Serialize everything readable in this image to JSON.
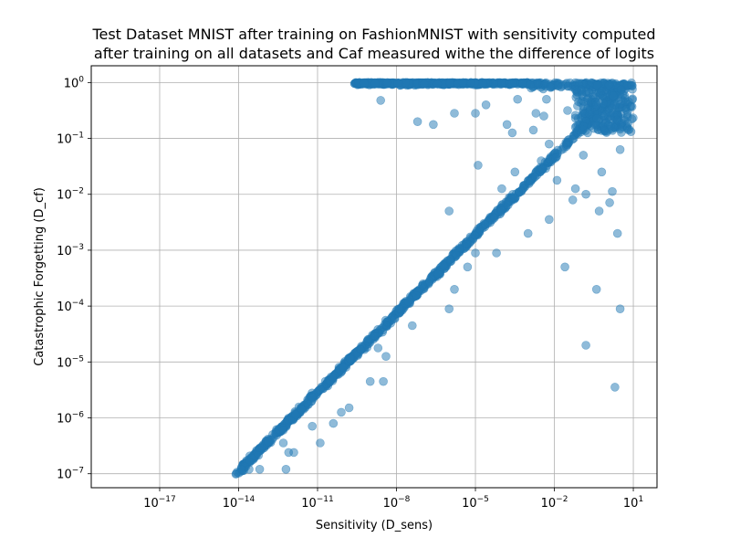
{
  "chart_data": {
    "type": "scatter",
    "title_lines": [
      "Test Dataset MNIST after training on FashionMNIST with sensitivity computed",
      "after training on all datasets and Caf measured withe the difference of logits"
    ],
    "xlabel": "Sensitivity (D_sens)",
    "ylabel": "Catastrophic Forgetting (D_cf)",
    "x_scale": "log",
    "y_scale": "log",
    "xlim_log10": [
      -19.6,
      1.9
    ],
    "ylim_log10": [
      -7.25,
      0.3
    ],
    "x_ticks": [
      {
        "base": "10",
        "exp": "−17",
        "log10": -17
      },
      {
        "base": "10",
        "exp": "−14",
        "log10": -14
      },
      {
        "base": "10",
        "exp": "−11",
        "log10": -11
      },
      {
        "base": "10",
        "exp": "−8",
        "log10": -8
      },
      {
        "base": "10",
        "exp": "−5",
        "log10": -5
      },
      {
        "base": "10",
        "exp": "−2",
        "log10": -2
      },
      {
        "base": "10",
        "exp": "1",
        "log10": 1
      }
    ],
    "y_ticks": [
      {
        "base": "10",
        "exp": "−7",
        "log10": -7
      },
      {
        "base": "10",
        "exp": "−6",
        "log10": -6
      },
      {
        "base": "10",
        "exp": "−5",
        "log10": -5
      },
      {
        "base": "10",
        "exp": "−4",
        "log10": -4
      },
      {
        "base": "10",
        "exp": "−3",
        "log10": -3
      },
      {
        "base": "10",
        "exp": "−2",
        "log10": -2
      },
      {
        "base": "10",
        "exp": "−1",
        "log10": -1
      },
      {
        "base": "10",
        "exp": "0",
        "log10": 0
      }
    ],
    "grid": true,
    "point_color": "#1f77b4",
    "point_alpha": 0.5,
    "main_trend_log10": {
      "x_start": -14,
      "y_start": -7,
      "x_end": 0.8,
      "y_end": 0,
      "slope": 0.47
    },
    "saturated_band_log10": {
      "y": 0,
      "x_start": -9.6,
      "x_end": 1.0
    },
    "outliers_log10": [
      [
        -13.9,
        -6.92
      ],
      [
        -13.6,
        -6.92
      ],
      [
        -13.2,
        -6.92
      ],
      [
        -12.2,
        -6.92
      ],
      [
        -12.3,
        -6.45
      ],
      [
        -12.3,
        -6.22
      ],
      [
        -12.1,
        -6.62
      ],
      [
        -11.9,
        -6.62
      ],
      [
        -11.2,
        -6.15
      ],
      [
        -10.9,
        -6.45
      ],
      [
        -10.4,
        -6.1
      ],
      [
        -10.1,
        -5.9
      ],
      [
        -9.8,
        -5.82
      ],
      [
        -9.0,
        -5.35
      ],
      [
        -8.5,
        -5.35
      ],
      [
        -8.7,
        -4.75
      ],
      [
        -8.4,
        -4.35
      ],
      [
        -8.4,
        -4.9
      ],
      [
        -7.4,
        -4.35
      ],
      [
        -7.9,
        -4.05
      ],
      [
        -6.0,
        -4.05
      ],
      [
        -5.8,
        -3.7
      ],
      [
        -5.3,
        -3.3
      ],
      [
        -5.0,
        -3.05
      ],
      [
        -4.2,
        -3.05
      ],
      [
        -3.0,
        -2.7
      ],
      [
        -2.2,
        -2.45
      ],
      [
        -1.2,
        -1.9
      ],
      [
        -1.9,
        -1.75
      ],
      [
        -0.2,
        -1.6
      ],
      [
        0.4,
        -2.7
      ],
      [
        -0.3,
        -2.3
      ],
      [
        -1.6,
        -3.3
      ],
      [
        -0.4,
        -3.7
      ],
      [
        0.5,
        -4.05
      ],
      [
        -0.8,
        -4.7
      ],
      [
        0.3,
        -5.45
      ],
      [
        -2.5,
        -1.4
      ],
      [
        -2.2,
        -1.1
      ],
      [
        -2.8,
        -0.85
      ],
      [
        -3.6,
        -0.9
      ],
      [
        -3.8,
        -0.75
      ],
      [
        -2.4,
        -0.6
      ],
      [
        -1.2,
        -0.8
      ],
      [
        -5.8,
        -0.55
      ],
      [
        -8.6,
        -0.32
      ],
      [
        -7.2,
        -0.7
      ],
      [
        -6.6,
        -0.75
      ],
      [
        -5.0,
        -0.55
      ],
      [
        -2.7,
        -0.55
      ],
      [
        -1.5,
        -0.5
      ],
      [
        -0.4,
        -0.4
      ],
      [
        0.3,
        -0.4
      ],
      [
        0.6,
        -0.22
      ],
      [
        -0.9,
        -1.3
      ],
      [
        0.5,
        -1.2
      ],
      [
        -4.6,
        -0.4
      ],
      [
        -3.4,
        -0.3
      ],
      [
        -1.2,
        -0.12
      ],
      [
        -4.9,
        -1.48
      ],
      [
        -6.0,
        -2.3
      ],
      [
        -4.0,
        -1.9
      ],
      [
        0.2,
        -1.95
      ],
      [
        0.1,
        -2.15
      ],
      [
        -0.8,
        -2.0
      ],
      [
        -1.3,
        -2.1
      ],
      [
        -3.5,
        -1.6
      ],
      [
        -2.3,
        -0.3
      ]
    ]
  }
}
